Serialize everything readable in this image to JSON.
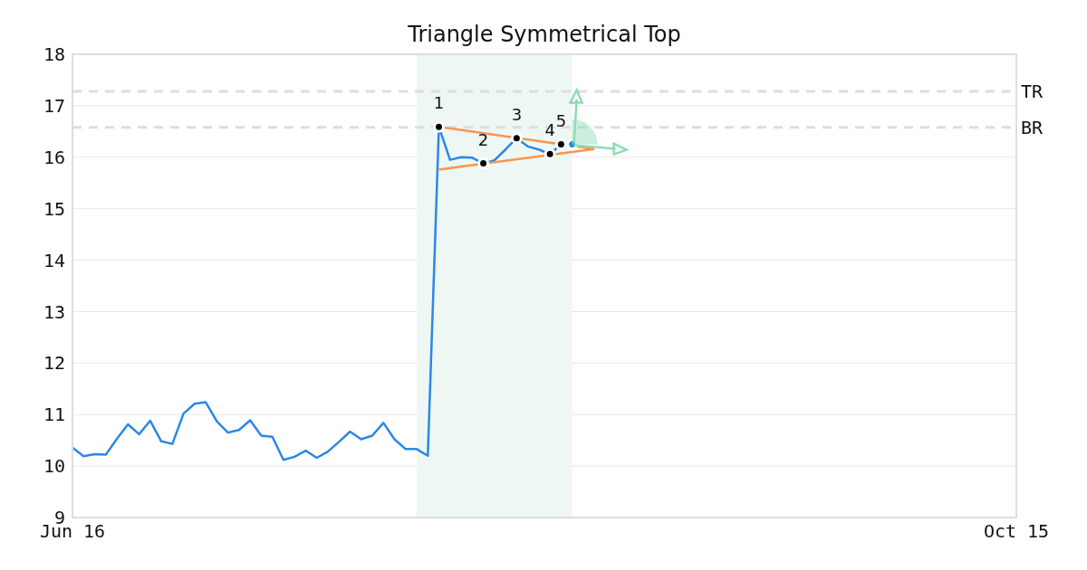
{
  "chart_data": {
    "type": "line",
    "title": "Triangle Symmetrical Top",
    "categories": [
      "Jun 16",
      null,
      null,
      null,
      null,
      null,
      null,
      null,
      null,
      null,
      null,
      null,
      null,
      null,
      null,
      null,
      null,
      null,
      null,
      null,
      null,
      null,
      null,
      null,
      null,
      null,
      null,
      null,
      null,
      null,
      null,
      null,
      null,
      null,
      null,
      null,
      null,
      null,
      null,
      null,
      null,
      null,
      null,
      null,
      null,
      null,
      null,
      null,
      null,
      null,
      null,
      null,
      null,
      null,
      null,
      null,
      null,
      null,
      null,
      null,
      null,
      null,
      null,
      null,
      null,
      null,
      null,
      null,
      null,
      null,
      null,
      null,
      null,
      null,
      null,
      null,
      null,
      null,
      null,
      null,
      null,
      null,
      null,
      null,
      null,
      "Oct 15"
    ],
    "ylim": [
      9,
      18
    ],
    "yticks": [
      9,
      10,
      11,
      12,
      13,
      14,
      15,
      16,
      17,
      18
    ],
    "grid": "y",
    "legend": false,
    "marker": "none",
    "line_style": "solid",
    "series": [
      {
        "color": "#2b87e8",
        "values": [
          10.36,
          10.19,
          10.23,
          10.22,
          10.53,
          10.81,
          10.62,
          10.88,
          10.48,
          10.43,
          11.02,
          11.21,
          11.24,
          10.87,
          10.65,
          10.7,
          10.89,
          10.59,
          10.57,
          10.12,
          10.18,
          10.3,
          10.16,
          10.28,
          10.47,
          10.67,
          10.52,
          10.59,
          10.84,
          10.52,
          10.33,
          10.33,
          10.2,
          16.59,
          15.95,
          16.0,
          15.99,
          15.88,
          15.94,
          16.15,
          16.37,
          16.21,
          16.15,
          16.06,
          16.25,
          16.25,
          null,
          null,
          null,
          null,
          null,
          null,
          null,
          null,
          null,
          null,
          null,
          null,
          null,
          null,
          null,
          null,
          null,
          null,
          null,
          null,
          null,
          null,
          null,
          null,
          null,
          null,
          null,
          null,
          null,
          null,
          null,
          null,
          null,
          null,
          null,
          null,
          null,
          null,
          null,
          null
        ]
      },
      {
        "type": "line",
        "color": "#f7964a",
        "values": [
          null,
          null,
          null,
          null,
          null,
          null,
          null,
          null,
          null,
          null,
          null,
          null,
          null,
          null,
          null,
          null,
          null,
          null,
          null,
          null,
          null,
          null,
          null,
          null,
          null,
          null,
          null,
          null,
          null,
          null,
          null,
          null,
          null,
          16.59,
          null,
          null,
          null,
          null,
          null,
          null,
          null,
          null,
          null,
          null,
          null,
          null,
          null,
          16.16,
          null,
          null,
          null,
          null,
          null,
          null,
          null,
          null,
          null,
          null,
          null,
          null,
          null,
          null,
          null,
          null,
          null,
          null,
          null,
          null,
          null,
          null,
          null,
          null,
          null,
          null,
          null,
          null,
          null,
          null,
          null,
          null,
          null,
          null,
          null,
          null,
          null,
          null
        ]
      },
      {
        "type": "line",
        "color": "#f7964a",
        "values": [
          null,
          null,
          null,
          null,
          null,
          null,
          null,
          null,
          null,
          null,
          null,
          null,
          null,
          null,
          null,
          null,
          null,
          null,
          null,
          null,
          null,
          null,
          null,
          null,
          null,
          null,
          null,
          null,
          null,
          null,
          null,
          null,
          null,
          15.76,
          null,
          null,
          null,
          null,
          null,
          null,
          null,
          null,
          null,
          null,
          null,
          null,
          null,
          16.16,
          null,
          null,
          null,
          null,
          null,
          null,
          null,
          null,
          null,
          null,
          null,
          null,
          null,
          null,
          null,
          null,
          null,
          null,
          null,
          null,
          null,
          null,
          null,
          null,
          null,
          null,
          null,
          null,
          null,
          null,
          null,
          null,
          null,
          null,
          null,
          null,
          null,
          null
        ]
      },
      {
        "type": "scatter",
        "marker": "circle",
        "color": "#000000",
        "values": [
          null,
          null,
          null,
          null,
          null,
          null,
          null,
          null,
          null,
          null,
          null,
          null,
          null,
          null,
          null,
          null,
          null,
          null,
          null,
          null,
          null,
          null,
          null,
          null,
          null,
          null,
          null,
          null,
          null,
          null,
          null,
          null,
          null,
          16.59,
          null,
          null,
          null,
          15.88,
          null,
          null,
          16.37,
          null,
          null,
          16.06,
          16.25,
          null,
          null,
          null,
          null,
          null,
          null,
          null,
          null,
          null,
          null,
          null,
          null,
          null,
          null,
          null,
          null,
          null,
          null,
          null,
          null,
          null,
          null,
          null,
          null,
          null,
          null,
          null,
          null,
          null,
          null,
          null,
          null,
          null,
          null,
          null,
          null,
          null,
          null,
          null,
          null,
          null
        ]
      },
      {
        "type": "scatter",
        "marker": "circle",
        "color": "#2b87e8",
        "values": [
          null,
          null,
          null,
          null,
          null,
          null,
          null,
          null,
          null,
          null,
          null,
          null,
          null,
          null,
          null,
          null,
          null,
          null,
          null,
          null,
          null,
          null,
          null,
          null,
          null,
          null,
          null,
          null,
          null,
          null,
          null,
          null,
          null,
          null,
          null,
          null,
          null,
          null,
          null,
          null,
          null,
          null,
          null,
          null,
          null,
          16.25,
          null,
          null,
          null,
          null,
          null,
          null,
          null,
          null,
          null,
          null,
          null,
          null,
          null,
          null,
          null,
          null,
          null,
          null,
          null,
          null,
          null,
          null,
          null,
          null,
          null,
          null,
          null,
          null,
          null,
          null,
          null,
          null,
          null,
          null,
          null,
          null,
          null,
          null,
          null,
          null
        ]
      }
    ],
    "ref_lines": [
      {
        "axis": "y",
        "value": 17.28,
        "label": "TR",
        "color": "#dddddd",
        "line_style": "dashed"
      },
      {
        "axis": "y",
        "value": 16.58,
        "label": "BR",
        "color": "#dddddd",
        "line_style": "dashed"
      }
    ],
    "annotations": [
      "1",
      "2",
      "3",
      "4",
      "5"
    ]
  }
}
